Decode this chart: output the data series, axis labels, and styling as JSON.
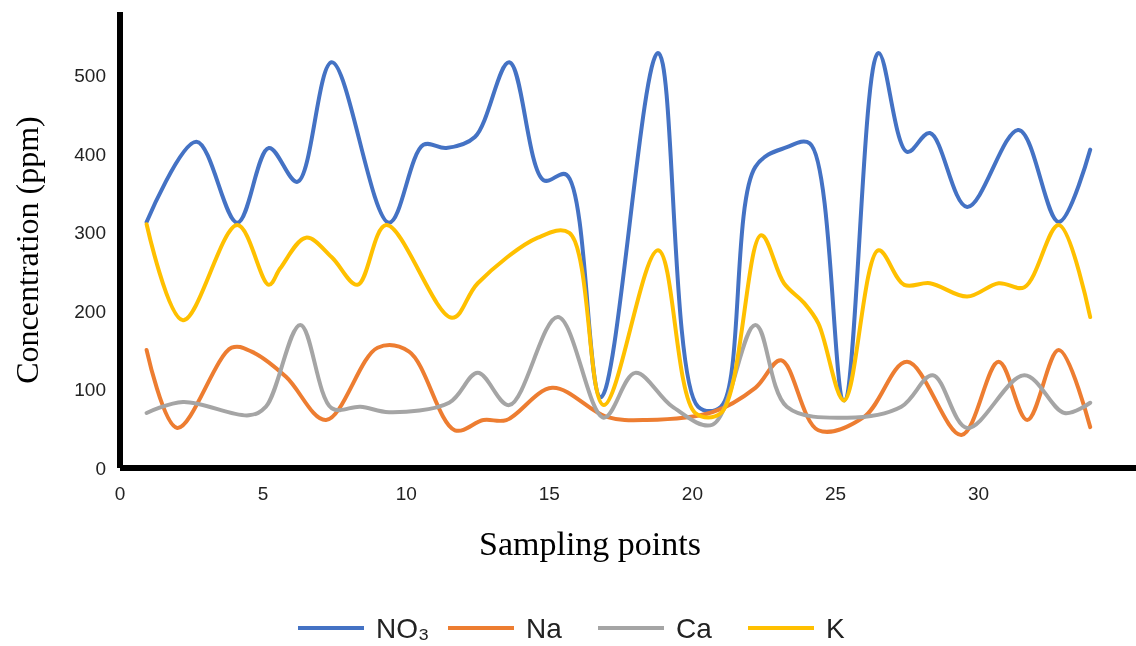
{
  "chart_data": {
    "type": "line",
    "xlabel": "Sampling points",
    "ylabel": "Concentration (ppm)",
    "xlim": [
      0,
      35.5
    ],
    "xticks": [
      0,
      5,
      10,
      15,
      20,
      25,
      30
    ],
    "ylim": [
      0,
      580
    ],
    "yticks": [
      0,
      100,
      200,
      300,
      400,
      500
    ],
    "grid": false,
    "legend": "bottom",
    "marker": "none",
    "line_style": "solid",
    "series": [
      {
        "name": "NO₃",
        "color": "#4472c4",
        "x": [
          0.93,
          2.67,
          4.1,
          5.2,
          6.2,
          7.4,
          9.4,
          10.6,
          11.4,
          12.4,
          13.6,
          14.8,
          15.6,
          16.8,
          18.8,
          20.2,
          21,
          22.2,
          23.3,
          24.1,
          25.3,
          26.5,
          27.5,
          28.3,
          29.6,
          31.4,
          32.8,
          33.9
        ],
        "values": [
          313,
          415,
          312,
          407,
          364,
          516,
          312,
          411,
          407,
          421,
          516,
          366,
          373,
          90,
          528,
          78,
          78,
          383,
          408,
          413,
          86,
          528,
          402,
          426,
          332,
          430,
          313,
          405
        ]
      },
      {
        "name": "Na",
        "color": "#ed7d31",
        "x": [
          0.93,
          2.0,
          3.9,
          4.6,
          5.8,
          7.2,
          9.0,
          10.1,
          11.7,
          12.7,
          13.5,
          15.1,
          17.0,
          18.4,
          20.7,
          22.2,
          23.1,
          24.4,
          26.0,
          27.5,
          29.4,
          30.7,
          31.7,
          32.8,
          33.9
        ],
        "values": [
          150,
          51,
          153,
          148,
          116,
          61,
          153,
          148,
          48,
          61,
          61,
          102,
          65,
          61,
          71,
          102,
          137,
          48,
          65,
          135,
          42,
          135,
          61,
          150,
          52
        ]
      },
      {
        "name": "Ca",
        "color": "#a5a5a5",
        "x": [
          0.93,
          2.2,
          4.5,
          5.1,
          6.3,
          7.4,
          8.4,
          9.4,
          11.5,
          12.5,
          13.6,
          15.3,
          16.9,
          18.0,
          19.3,
          20.7,
          22.2,
          23.3,
          25.4,
          27.3,
          28.4,
          29.6,
          31.6,
          33.0,
          33.9
        ],
        "values": [
          70,
          84,
          67,
          78,
          182,
          76,
          78,
          71,
          83,
          121,
          80,
          192,
          64,
          121,
          78,
          55,
          182,
          78,
          64,
          78,
          118,
          51,
          118,
          70,
          83
        ]
      },
      {
        "name": "K",
        "color": "#ffc000",
        "x": [
          0.93,
          2.2,
          4.1,
          5.2,
          5.6,
          6.5,
          7.4,
          8.3,
          9.3,
          11.6,
          12.5,
          14.6,
          15.7,
          16.9,
          18.8,
          20.1,
          21,
          22.4,
          23.2,
          23.9,
          24.4,
          25.3,
          26.5,
          27.4,
          28.3,
          29.6,
          30.7,
          31.6,
          32.8,
          33.9
        ],
        "values": [
          310,
          188,
          309,
          233,
          254,
          293,
          268,
          233,
          309,
          191,
          235,
          293,
          299,
          80,
          277,
          70,
          70,
          296,
          235,
          210,
          184,
          86,
          277,
          233,
          235,
          218,
          235,
          230,
          309,
          192
        ]
      }
    ]
  }
}
